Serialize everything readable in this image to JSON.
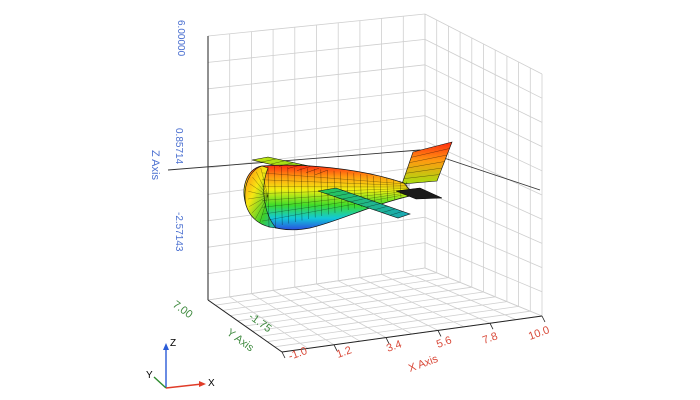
{
  "colors": {
    "z_axis": "#4a6fd0",
    "y_axis": "#3f8a3f",
    "x_axis": "#d94a3a",
    "grid": "#cfcfcf",
    "triad_x": "#e03c28",
    "triad_y": "#2e8b2e",
    "triad_z": "#2a5bd7"
  },
  "z_axis": {
    "title": "Z Axis",
    "ticks": [
      "6.00000",
      "0.85714",
      "-2.57143"
    ]
  },
  "y_axis": {
    "title": "Y Axis",
    "ticks": [
      "7.00",
      "-1.75"
    ]
  },
  "x_axis": {
    "title": "X Axis",
    "ticks": [
      "-1.0",
      "1.2",
      "3.4",
      "5.6",
      "7.8",
      "10.0"
    ]
  },
  "triad": {
    "x": "X",
    "y": "Y",
    "z": "Z"
  },
  "model": {
    "surface": "airplane",
    "colormap": "rainbow"
  }
}
